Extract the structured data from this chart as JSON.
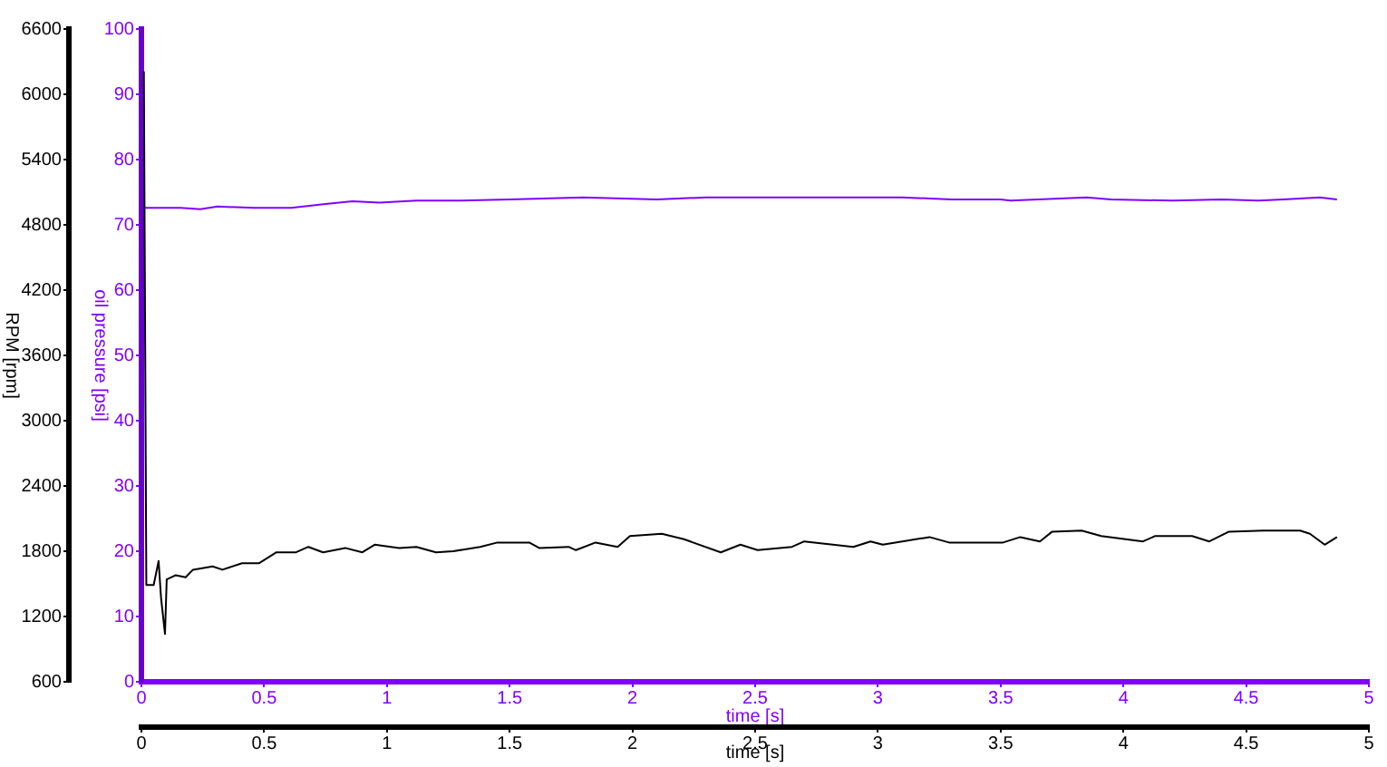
{
  "chart_data": {
    "type": "line",
    "xlabel": "time [s]",
    "x2label": "time [s]",
    "ylabel": "RPM [rpm]",
    "y2label": "oil pressure [psi]",
    "xlim": [
      0,
      5
    ],
    "xticks": [
      0,
      0.5,
      1,
      1.5,
      2,
      2.5,
      3,
      3.5,
      4,
      4.5,
      5
    ],
    "x2lim": [
      0,
      5
    ],
    "x2ticks": [
      0,
      0.5,
      1,
      1.5,
      2,
      2.5,
      3,
      3.5,
      4,
      4.5,
      5
    ],
    "ylim": [
      600,
      6600
    ],
    "yticks": [
      600,
      1200,
      1800,
      2400,
      3000,
      3600,
      4200,
      4800,
      5400,
      6000,
      6600
    ],
    "y2lim": [
      0,
      100
    ],
    "y2ticks": [
      0,
      10,
      20,
      30,
      40,
      50,
      60,
      70,
      80,
      90,
      100
    ],
    "grid": false,
    "legend": false,
    "marker": "none",
    "line_style": "solid",
    "series": [
      {
        "color": "#000000",
        "x": [
          0.01,
          0.02,
          0.05,
          0.07,
          0.08,
          0.096,
          0.103,
          0.14,
          0.18,
          0.21,
          0.29,
          0.33,
          0.41,
          0.48,
          0.55,
          0.63,
          0.68,
          0.74,
          0.83,
          0.9,
          0.95,
          1.05,
          1.12,
          1.2,
          1.27,
          1.38,
          1.45,
          1.58,
          1.62,
          1.74,
          1.77,
          1.85,
          1.94,
          1.99,
          2.12,
          2.21,
          2.36,
          2.44,
          2.51,
          2.65,
          2.7,
          2.9,
          2.97,
          3.02,
          3.21,
          3.29,
          3.51,
          3.58,
          3.66,
          3.71,
          3.83,
          3.91,
          4.08,
          4.13,
          4.28,
          4.35,
          4.43,
          4.57,
          4.72,
          4.76,
          4.82,
          4.87
        ],
        "values": [
          6210,
          1490,
          1490,
          1710,
          1370,
          1040,
          1540,
          1580,
          1560,
          1630,
          1660,
          1630,
          1690,
          1690,
          1790,
          1790,
          1840,
          1790,
          1830,
          1790,
          1860,
          1830,
          1840,
          1790,
          1800,
          1840,
          1880,
          1880,
          1830,
          1840,
          1810,
          1880,
          1840,
          1940,
          1960,
          1910,
          1790,
          1860,
          1810,
          1840,
          1890,
          1840,
          1890,
          1860,
          1930,
          1880,
          1880,
          1930,
          1890,
          1980,
          1990,
          1940,
          1890,
          1940,
          1940,
          1890,
          1980,
          1990,
          1990,
          1960,
          1860,
          1930
        ]
      },
      {
        "color": "#8000ff",
        "axis": "y2",
        "x": [
          0.01,
          0.16,
          0.24,
          0.31,
          0.46,
          0.61,
          0.75,
          0.86,
          0.97,
          1.12,
          1.27,
          1.5,
          1.8,
          2.1,
          2.3,
          2.5,
          3.1,
          3.3,
          3.5,
          3.54,
          3.65,
          3.85,
          3.95,
          4.2,
          4.4,
          4.55,
          4.65,
          4.8,
          4.87
        ],
        "values": [
          72.6,
          72.6,
          72.4,
          72.8,
          72.6,
          72.6,
          73.2,
          73.6,
          73.4,
          73.7,
          73.7,
          73.9,
          74.2,
          73.9,
          74.2,
          74.2,
          74.2,
          73.9,
          73.9,
          73.7,
          73.9,
          74.2,
          73.9,
          73.7,
          73.9,
          73.7,
          73.9,
          74.2,
          73.9
        ]
      }
    ]
  }
}
